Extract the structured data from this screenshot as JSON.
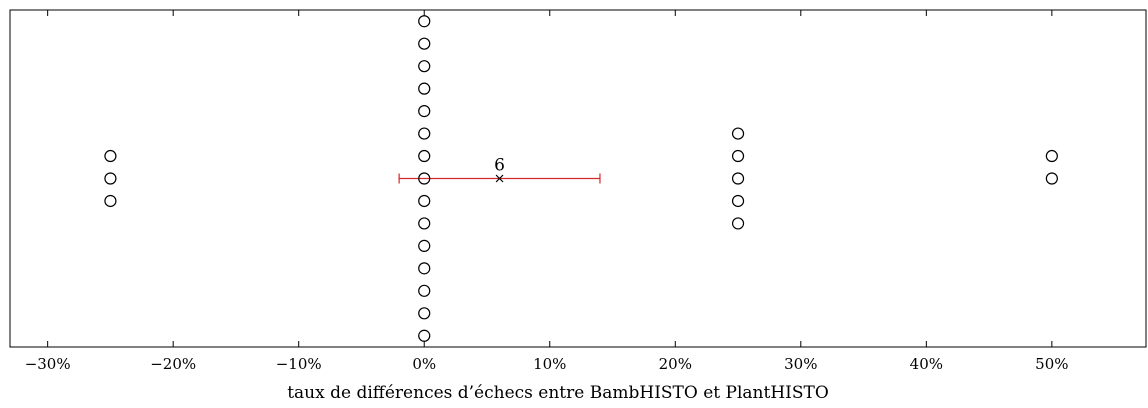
{
  "chart_data": {
    "type": "scatter",
    "title": "",
    "xlabel": "taux de différences d’échecs entre BambHISTO et PlantHISTO",
    "ylabel": "",
    "xlim": [
      -33,
      57.5
    ],
    "ylim": [
      -7.5,
      7.5
    ],
    "xticks": [
      -30,
      -20,
      -10,
      0,
      10,
      20,
      30,
      40,
      50
    ],
    "xtick_labels": [
      "−30%",
      "−20%",
      "−10%",
      "0%",
      "10%",
      "20%",
      "30%",
      "40%",
      "50%"
    ],
    "grid": false,
    "points": [
      {
        "x": -25,
        "y": 1
      },
      {
        "x": -25,
        "y": 0
      },
      {
        "x": -25,
        "y": -1
      },
      {
        "x": 0,
        "y": 7
      },
      {
        "x": 0,
        "y": 6
      },
      {
        "x": 0,
        "y": 5
      },
      {
        "x": 0,
        "y": 4
      },
      {
        "x": 0,
        "y": 3
      },
      {
        "x": 0,
        "y": 2
      },
      {
        "x": 0,
        "y": 1
      },
      {
        "x": 0,
        "y": 0
      },
      {
        "x": 0,
        "y": -1
      },
      {
        "x": 0,
        "y": -2
      },
      {
        "x": 0,
        "y": -3
      },
      {
        "x": 0,
        "y": -4
      },
      {
        "x": 0,
        "y": -5
      },
      {
        "x": 0,
        "y": -6
      },
      {
        "x": 0,
        "y": -7
      },
      {
        "x": 25,
        "y": 2
      },
      {
        "x": 25,
        "y": 1
      },
      {
        "x": 25,
        "y": 0
      },
      {
        "x": 25,
        "y": -1
      },
      {
        "x": 25,
        "y": -2
      },
      {
        "x": 50,
        "y": 1
      },
      {
        "x": 50,
        "y": 0
      }
    ],
    "mean": {
      "x": 6,
      "y": 0,
      "label": "6",
      "error_low": -2,
      "error_high": 14
    },
    "colors": {
      "points": "#000000",
      "errorbar": "#d62728",
      "axis": "#000000"
    }
  }
}
